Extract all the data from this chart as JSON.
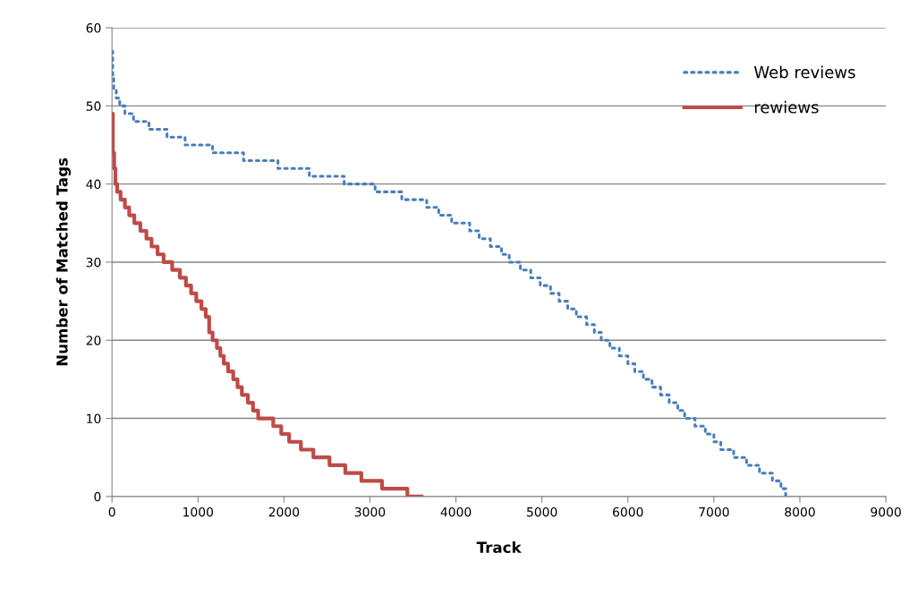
{
  "chart_data": {
    "type": "step",
    "xlabel": "Track",
    "ylabel": "Number of Matched Tags",
    "xlim": [
      0,
      9000
    ],
    "xticks": [
      0,
      1000,
      2000,
      3000,
      4000,
      5000,
      6000,
      7000,
      8000,
      9000
    ],
    "ylim": [
      0,
      60
    ],
    "yticks": [
      0,
      10,
      20,
      30,
      40,
      50,
      60
    ],
    "grid": "y",
    "legend": "top right",
    "marker": "none",
    "series": [
      {
        "name": "Web reviews",
        "color": "#4a7ebb",
        "line_style": "dotted",
        "x": [
          0,
          8,
          20,
          50,
          90,
          150,
          250,
          430,
          640,
          850,
          1170,
          1530,
          1930,
          2295,
          2700,
          3060,
          3370,
          3660,
          3800,
          3950,
          4160,
          4270,
          4400,
          4530,
          4620,
          4750,
          4870,
          4980,
          5100,
          5200,
          5300,
          5400,
          5520,
          5610,
          5690,
          5790,
          5900,
          6000,
          6080,
          6180,
          6280,
          6380,
          6480,
          6580,
          6660,
          6780,
          6900,
          7000,
          7080,
          7230,
          7380,
          7530,
          7680,
          7780,
          7835
        ],
        "values": [
          57,
          54,
          52,
          51,
          50,
          49,
          48,
          47,
          46,
          45,
          44,
          43,
          42,
          41,
          40,
          39,
          38,
          37,
          36,
          35,
          34,
          33,
          32,
          31,
          30,
          29,
          28,
          27,
          26,
          25,
          24,
          23,
          22,
          21,
          20,
          19,
          18,
          17,
          16,
          15,
          14,
          13,
          12,
          11,
          10,
          9,
          8,
          7,
          6,
          5,
          4,
          3,
          2,
          1,
          0
        ]
      },
      {
        "name": "rewiews",
        "color": "#be4b48",
        "line_style": "solid",
        "x": [
          0,
          10,
          25,
          40,
          60,
          100,
          150,
          200,
          260,
          330,
          400,
          460,
          530,
          600,
          700,
          790,
          860,
          920,
          980,
          1040,
          1090,
          1130,
          1170,
          1220,
          1260,
          1300,
          1350,
          1410,
          1460,
          1510,
          1580,
          1640,
          1700,
          1776,
          1875,
          1968,
          2060,
          2197,
          2342,
          2530,
          2713,
          2900,
          3140,
          3435,
          3600
        ],
        "values": [
          49,
          44,
          42,
          40,
          39,
          38,
          37,
          36,
          35,
          34,
          33,
          32,
          31,
          30,
          29,
          28,
          27,
          26,
          25,
          24,
          23,
          21,
          20,
          19,
          18,
          17,
          16,
          15,
          14,
          13,
          12,
          11,
          10,
          10,
          9,
          8,
          7,
          6,
          5,
          4,
          3,
          2,
          1,
          0,
          0
        ]
      }
    ]
  }
}
